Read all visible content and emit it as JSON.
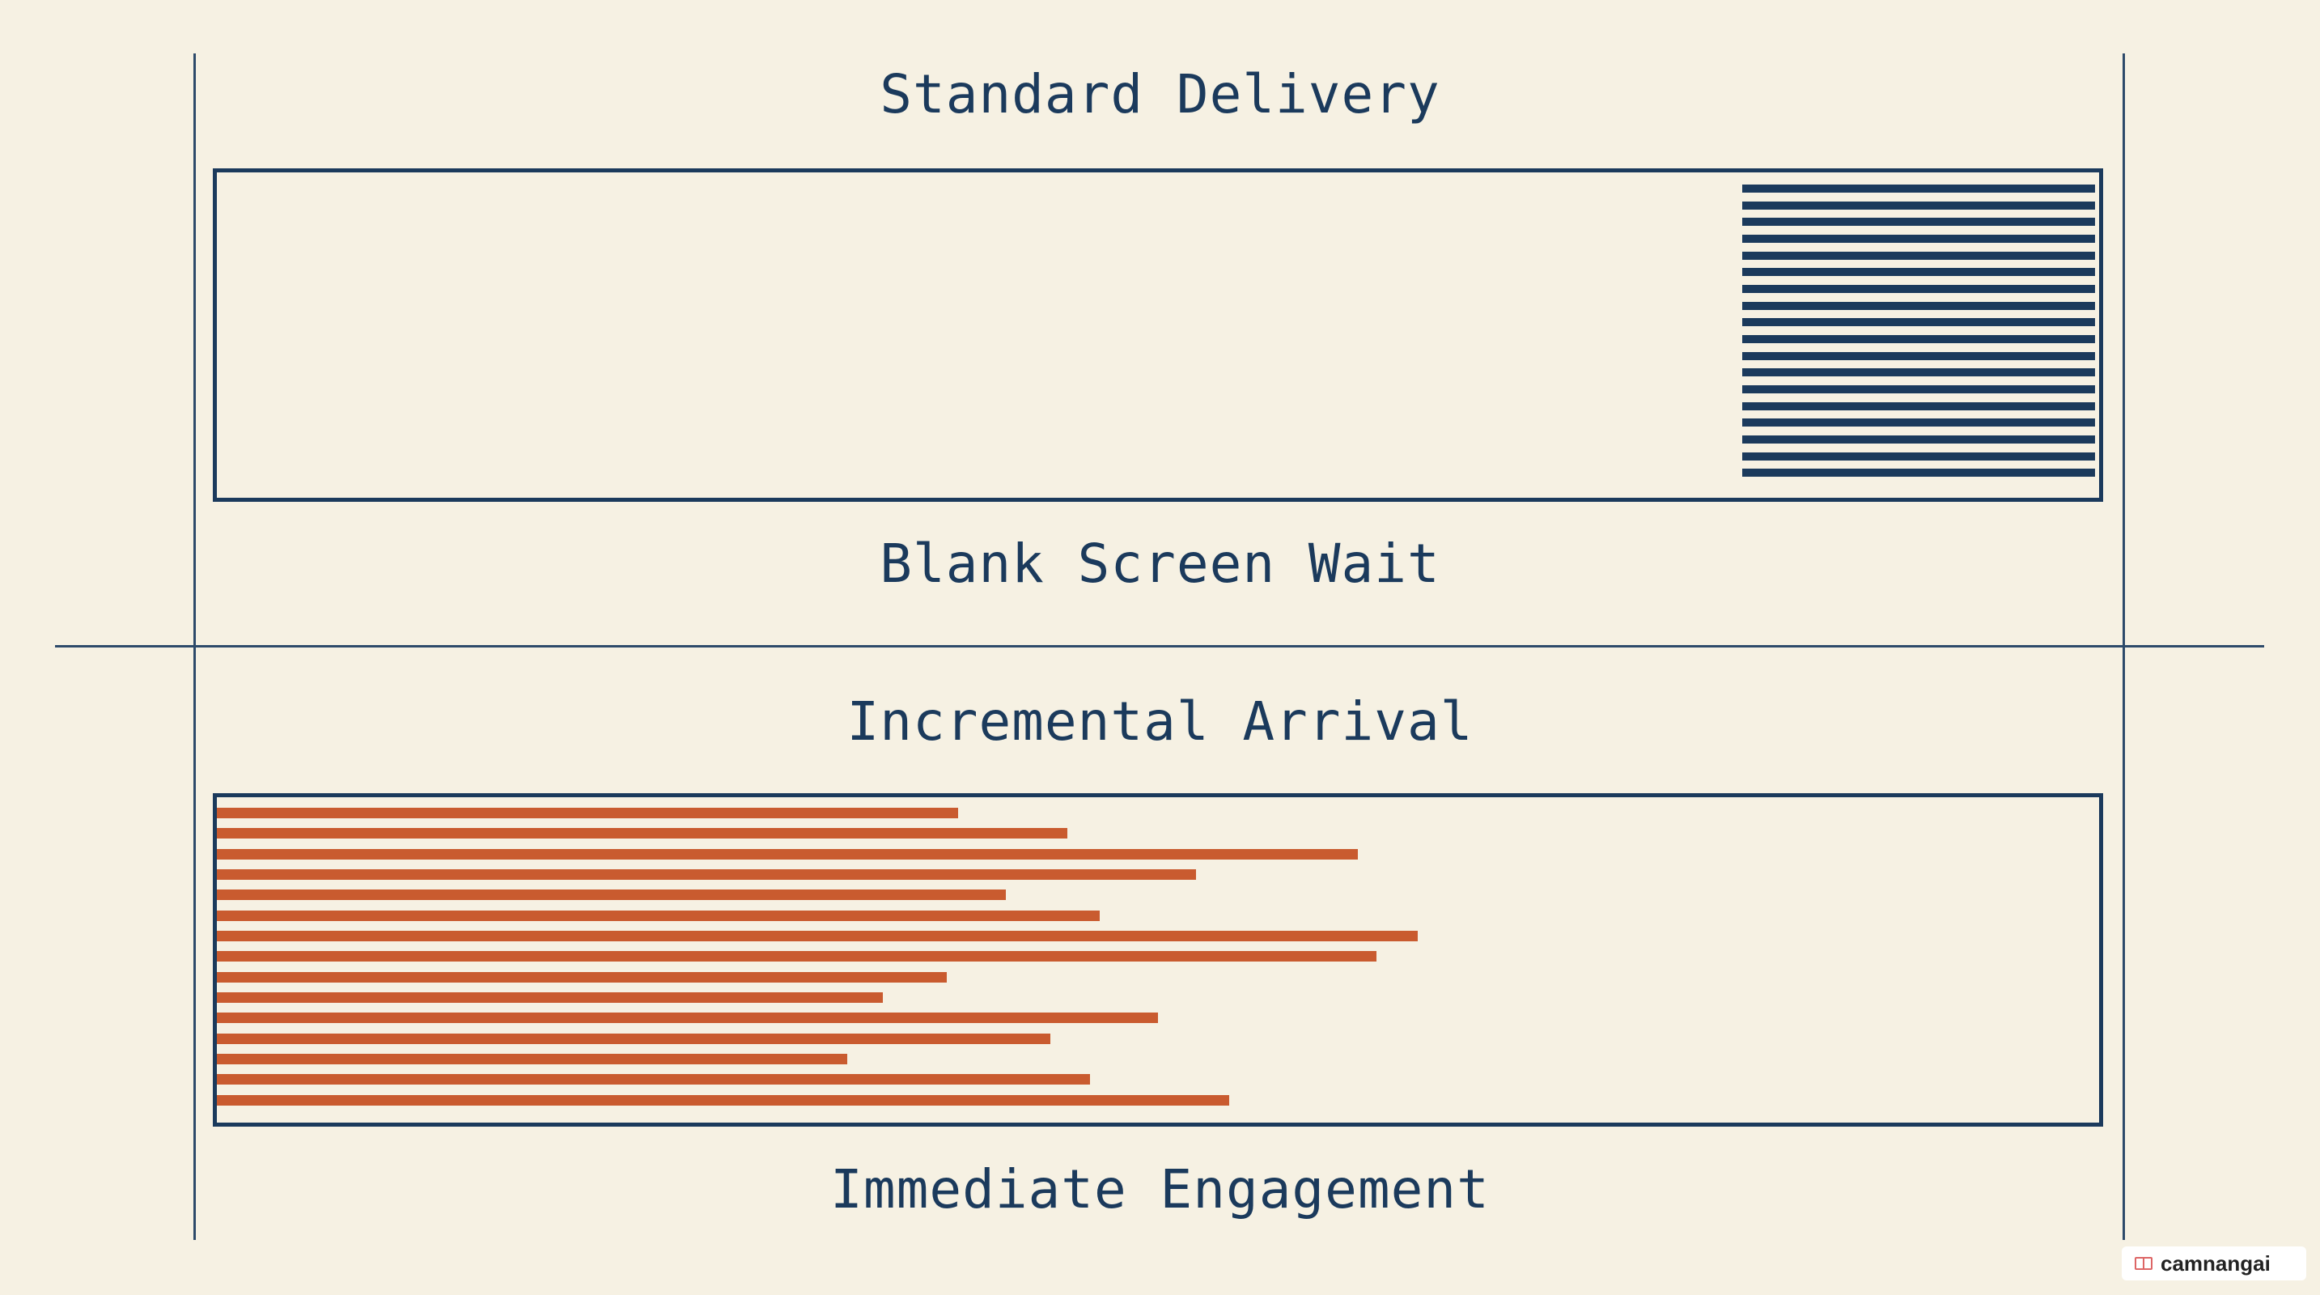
{
  "top_section": {
    "title": "Standard Delivery",
    "caption": "Blank Screen Wait",
    "block_line_count": 18,
    "color": "#1b3a5c"
  },
  "bottom_section": {
    "title": "Incremental Arrival",
    "caption": "Immediate Engagement",
    "bar_color": "#c95b2f",
    "bar_lengths": [
      0.394,
      0.452,
      0.606,
      0.52,
      0.419,
      0.469,
      0.638,
      0.616,
      0.388,
      0.354,
      0.5,
      0.443,
      0.335,
      0.464,
      0.538
    ]
  },
  "badge": {
    "label": "camnangai",
    "icon": "book-icon"
  }
}
